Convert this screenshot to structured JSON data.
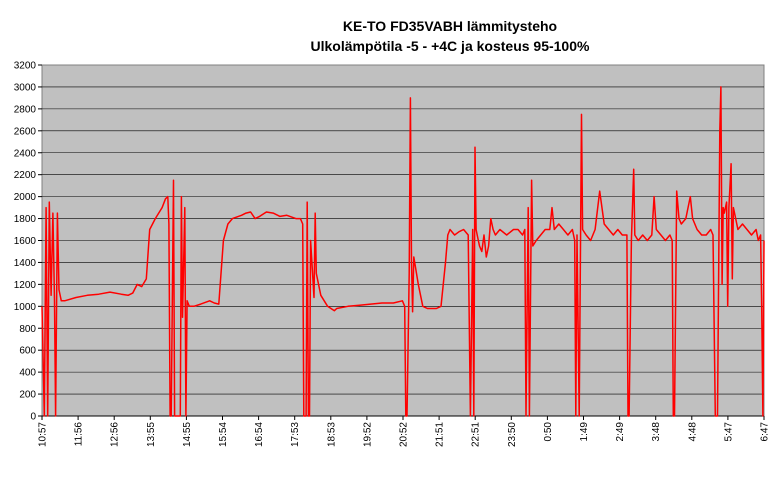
{
  "chart_data": {
    "type": "line",
    "title_lines": [
      "KE-TO FD35VABH lämmitysteho",
      "Ulkolämpötila  -5 - +4C ja kosteus 95-100%"
    ],
    "xlabel": "",
    "ylabel": "",
    "ylim": [
      0,
      3200
    ],
    "yticks": [
      0,
      200,
      400,
      600,
      800,
      1000,
      1200,
      1400,
      1600,
      1800,
      2000,
      2200,
      2400,
      2600,
      2800,
      3000,
      3200
    ],
    "xticks": [
      "10:57",
      "11:56",
      "12:56",
      "13:55",
      "14:55",
      "15:54",
      "16:54",
      "17:53",
      "18:53",
      "19:52",
      "20:52",
      "21:51",
      "22:51",
      "23:50",
      "0:50",
      "1:49",
      "2:49",
      "3:48",
      "4:48",
      "5:47",
      "6:47"
    ],
    "grid": "horizontal",
    "legend": "none",
    "plot_background": "#C0C0C0",
    "series": [
      {
        "color": "#FF0000",
        "points": [
          [
            0.0,
            1000
          ],
          [
            0.1,
            0
          ],
          [
            0.18,
            1900
          ],
          [
            0.25,
            0
          ],
          [
            0.32,
            1950
          ],
          [
            0.4,
            1100
          ],
          [
            0.48,
            1850
          ],
          [
            0.55,
            1050
          ],
          [
            0.6,
            0
          ],
          [
            0.68,
            1850
          ],
          [
            0.75,
            1150
          ],
          [
            0.85,
            1050
          ],
          [
            1.0,
            1050
          ],
          [
            1.5,
            1080
          ],
          [
            2.0,
            1100
          ],
          [
            2.5,
            1110
          ],
          [
            3.0,
            1130
          ],
          [
            3.5,
            1110
          ],
          [
            3.8,
            1100
          ],
          [
            4.0,
            1120
          ],
          [
            4.2,
            1200
          ],
          [
            4.4,
            1180
          ],
          [
            4.6,
            1250
          ],
          [
            4.75,
            1700
          ],
          [
            5.0,
            1800
          ],
          [
            5.3,
            1900
          ],
          [
            5.45,
            1980
          ],
          [
            5.55,
            2000
          ],
          [
            5.6,
            1750
          ],
          [
            5.65,
            0
          ],
          [
            5.7,
            0
          ],
          [
            5.8,
            2150
          ],
          [
            5.85,
            0
          ],
          [
            6.0,
            0
          ],
          [
            6.1,
            0
          ],
          [
            6.15,
            2000
          ],
          [
            6.2,
            900
          ],
          [
            6.3,
            1900
          ],
          [
            6.35,
            0
          ],
          [
            6.4,
            1050
          ],
          [
            6.5,
            1000
          ],
          [
            6.7,
            1000
          ],
          [
            7.0,
            1020
          ],
          [
            7.4,
            1050
          ],
          [
            7.6,
            1030
          ],
          [
            7.8,
            1020
          ],
          [
            8.0,
            1600
          ],
          [
            8.2,
            1750
          ],
          [
            8.4,
            1800
          ],
          [
            8.8,
            1830
          ],
          [
            9.0,
            1850
          ],
          [
            9.2,
            1860
          ],
          [
            9.4,
            1800
          ],
          [
            9.6,
            1820
          ],
          [
            9.9,
            1860
          ],
          [
            10.2,
            1850
          ],
          [
            10.5,
            1820
          ],
          [
            10.8,
            1830
          ],
          [
            11.2,
            1800
          ],
          [
            11.4,
            1800
          ],
          [
            11.5,
            1750
          ],
          [
            11.55,
            0
          ],
          [
            11.65,
            0
          ],
          [
            11.7,
            1950
          ],
          [
            11.75,
            0
          ],
          [
            11.8,
            0
          ],
          [
            11.85,
            1600
          ],
          [
            12.0,
            1080
          ],
          [
            12.05,
            1850
          ],
          [
            12.1,
            1300
          ],
          [
            12.3,
            1100
          ],
          [
            12.6,
            1000
          ],
          [
            12.9,
            960
          ],
          [
            13.0,
            980
          ],
          [
            13.5,
            1000
          ],
          [
            14.0,
            1010
          ],
          [
            14.5,
            1020
          ],
          [
            15.0,
            1030
          ],
          [
            15.5,
            1030
          ],
          [
            15.9,
            1050
          ],
          [
            16.0,
            1000
          ],
          [
            16.05,
            0
          ],
          [
            16.1,
            0
          ],
          [
            16.2,
            1300
          ],
          [
            16.25,
            2900
          ],
          [
            16.3,
            1400
          ],
          [
            16.35,
            950
          ],
          [
            16.4,
            1450
          ],
          [
            16.6,
            1200
          ],
          [
            16.8,
            1000
          ],
          [
            17.0,
            980
          ],
          [
            17.4,
            980
          ],
          [
            17.6,
            1000
          ],
          [
            17.8,
            1400
          ],
          [
            17.9,
            1650
          ],
          [
            18.0,
            1700
          ],
          [
            18.2,
            1650
          ],
          [
            18.4,
            1680
          ],
          [
            18.6,
            1700
          ],
          [
            18.8,
            1650
          ],
          [
            18.9,
            0
          ],
          [
            19.0,
            1700
          ],
          [
            19.05,
            0
          ],
          [
            19.1,
            2450
          ],
          [
            19.15,
            1700
          ],
          [
            19.2,
            1650
          ],
          [
            19.3,
            1550
          ],
          [
            19.4,
            1500
          ],
          [
            19.5,
            1650
          ],
          [
            19.6,
            1450
          ],
          [
            19.7,
            1550
          ],
          [
            19.8,
            1800
          ],
          [
            19.9,
            1700
          ],
          [
            20.0,
            1650
          ],
          [
            20.2,
            1700
          ],
          [
            20.5,
            1650
          ],
          [
            20.8,
            1700
          ],
          [
            21.0,
            1700
          ],
          [
            21.2,
            1650
          ],
          [
            21.3,
            1700
          ],
          [
            21.35,
            0
          ],
          [
            21.45,
            1900
          ],
          [
            21.5,
            0
          ],
          [
            21.6,
            2150
          ],
          [
            21.65,
            1550
          ],
          [
            21.8,
            1600
          ],
          [
            22.0,
            1650
          ],
          [
            22.2,
            1700
          ],
          [
            22.4,
            1700
          ],
          [
            22.5,
            1900
          ],
          [
            22.6,
            1700
          ],
          [
            22.8,
            1750
          ],
          [
            23.0,
            1700
          ],
          [
            23.2,
            1650
          ],
          [
            23.4,
            1700
          ],
          [
            23.5,
            1600
          ],
          [
            23.55,
            0
          ],
          [
            23.6,
            1650
          ],
          [
            23.7,
            0
          ],
          [
            23.8,
            2750
          ],
          [
            23.85,
            1700
          ],
          [
            24.0,
            1650
          ],
          [
            24.2,
            1600
          ],
          [
            24.4,
            1700
          ],
          [
            24.6,
            2050
          ],
          [
            24.8,
            1750
          ],
          [
            25.0,
            1700
          ],
          [
            25.2,
            1650
          ],
          [
            25.4,
            1700
          ],
          [
            25.6,
            1650
          ],
          [
            25.8,
            1650
          ],
          [
            25.85,
            0
          ],
          [
            25.9,
            0
          ],
          [
            26.0,
            1600
          ],
          [
            26.1,
            2250
          ],
          [
            26.15,
            1650
          ],
          [
            26.3,
            1600
          ],
          [
            26.5,
            1650
          ],
          [
            26.7,
            1600
          ],
          [
            26.9,
            1650
          ],
          [
            27.0,
            2000
          ],
          [
            27.1,
            1700
          ],
          [
            27.3,
            1650
          ],
          [
            27.5,
            1600
          ],
          [
            27.7,
            1650
          ],
          [
            27.8,
            1600
          ],
          [
            27.85,
            0
          ],
          [
            27.9,
            0
          ],
          [
            28.0,
            2050
          ],
          [
            28.1,
            1800
          ],
          [
            28.2,
            1750
          ],
          [
            28.4,
            1800
          ],
          [
            28.6,
            2000
          ],
          [
            28.7,
            1800
          ],
          [
            28.9,
            1700
          ],
          [
            29.1,
            1650
          ],
          [
            29.3,
            1650
          ],
          [
            29.5,
            1700
          ],
          [
            29.6,
            1650
          ],
          [
            29.7,
            0
          ],
          [
            29.8,
            0
          ],
          [
            29.9,
            2600
          ],
          [
            29.95,
            3000
          ],
          [
            30.0,
            1200
          ],
          [
            30.05,
            1900
          ],
          [
            30.1,
            1850
          ],
          [
            30.2,
            1950
          ],
          [
            30.25,
            1000
          ],
          [
            30.3,
            1900
          ],
          [
            30.4,
            2300
          ],
          [
            30.45,
            1250
          ],
          [
            30.5,
            1900
          ],
          [
            30.6,
            1800
          ],
          [
            30.7,
            1700
          ],
          [
            30.9,
            1750
          ],
          [
            31.1,
            1700
          ],
          [
            31.3,
            1650
          ],
          [
            31.5,
            1700
          ],
          [
            31.6,
            1600
          ],
          [
            31.7,
            1650
          ],
          [
            31.75,
            1000
          ],
          [
            31.8,
            0
          ],
          [
            31.85,
            1600
          ]
        ]
      }
    ]
  }
}
